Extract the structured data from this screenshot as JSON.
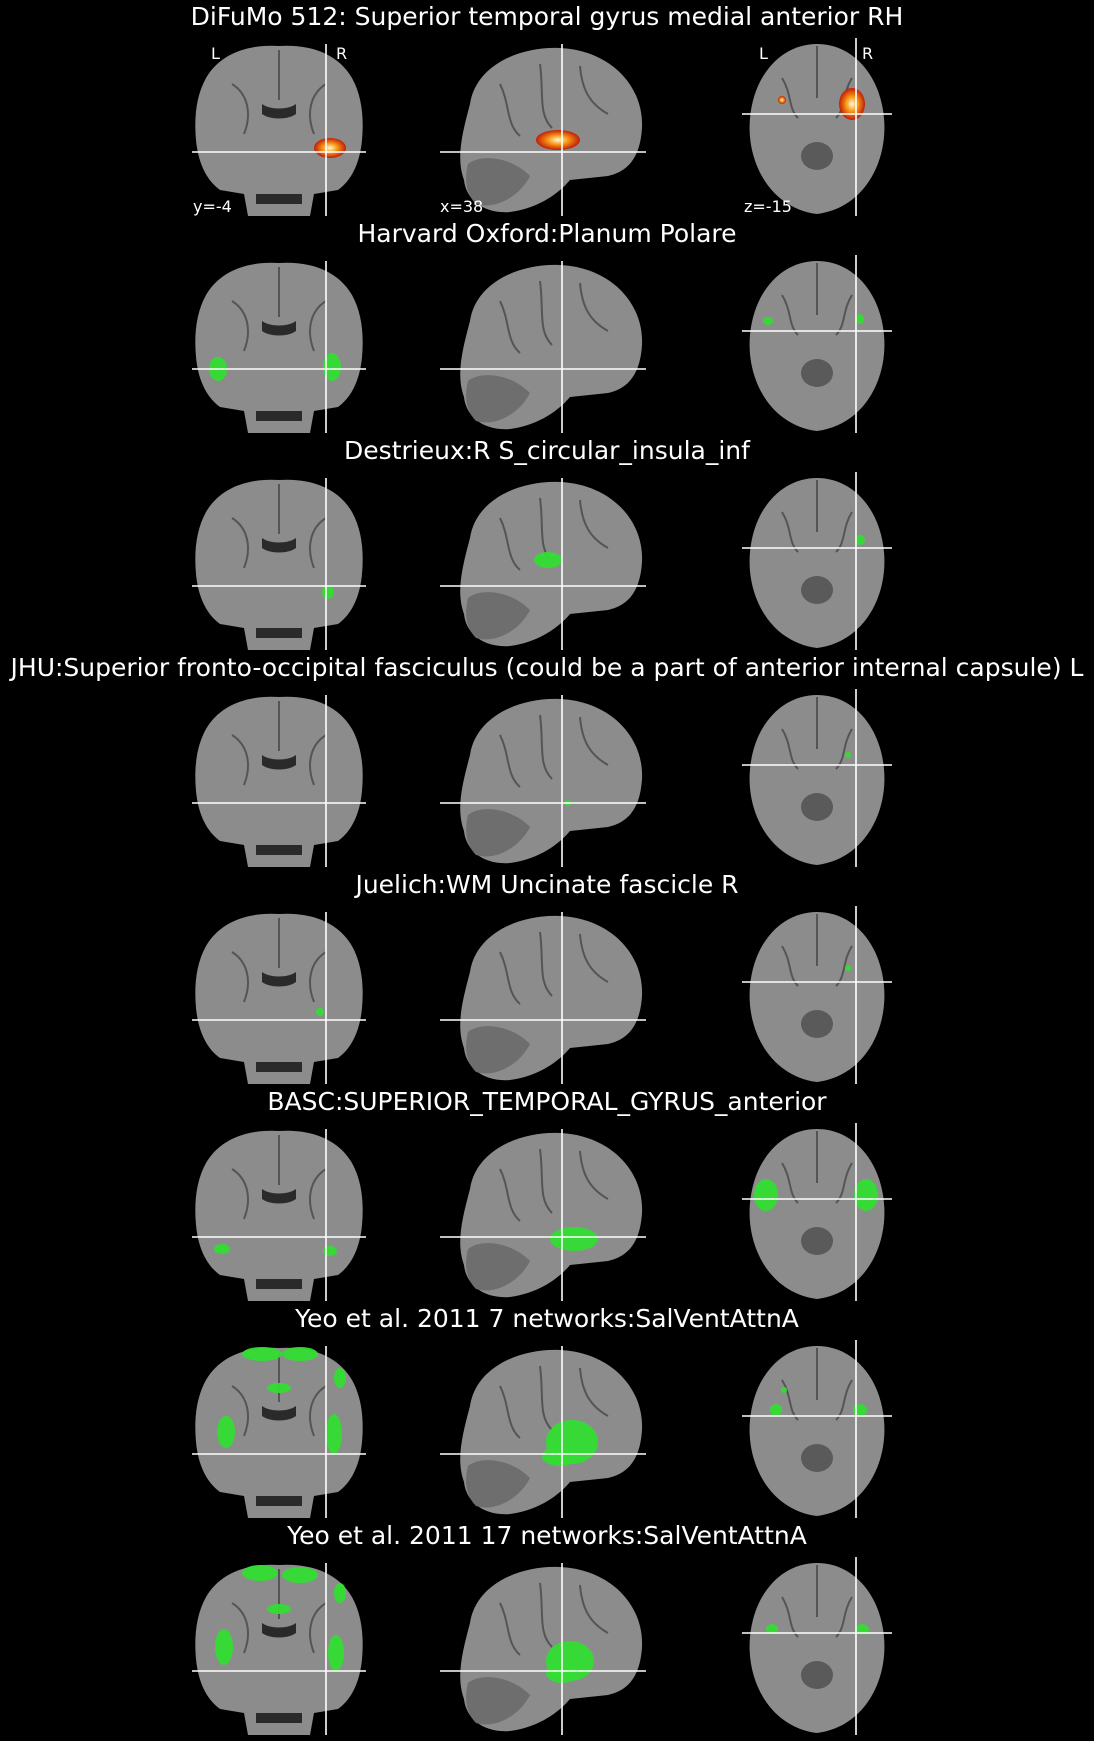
{
  "colors": {
    "background": "#000000",
    "brain_tissue": "#8c8c8c",
    "overlay_green": "#33dd33",
    "crosshair": "#ffffff",
    "heatmap_core": "#ffffe0",
    "heatmap_mid": "#ff9a10",
    "heatmap_edge": "#c41800"
  },
  "orientation_labels": {
    "left": "L",
    "right": "R"
  },
  "coordinates": {
    "coronal": "y=-4",
    "sagittal": "x=38",
    "axial": "z=-15"
  },
  "panels": [
    {
      "title": "DiFuMo 512: Superior temporal gyrus medial anterior RH",
      "overlay": "heatmap"
    },
    {
      "title": "Harvard Oxford:Planum Polare",
      "overlay": "green"
    },
    {
      "title": "Destrieux:R S_circular_insula_inf",
      "overlay": "green"
    },
    {
      "title": "JHU:Superior fronto-occipital fasciculus (could be a part of anterior internal capsule) L",
      "overlay": "green"
    },
    {
      "title": "Juelich:WM Uncinate fascicle R",
      "overlay": "green"
    },
    {
      "title": "BASC:SUPERIOR_TEMPORAL_GYRUS_anterior",
      "overlay": "green"
    },
    {
      "title": "Yeo et al. 2011 7 networks:SalVentAttnA",
      "overlay": "green"
    },
    {
      "title": "Yeo et al. 2011 17 networks:SalVentAttnA",
      "overlay": "green"
    }
  ]
}
